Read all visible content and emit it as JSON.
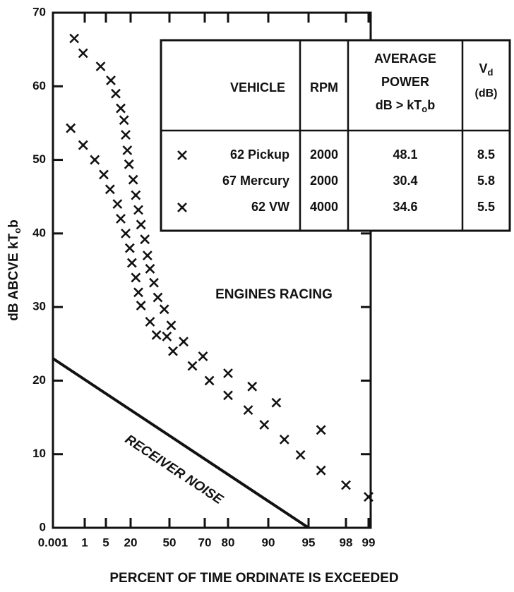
{
  "chart_data": {
    "type": "scatter",
    "xlabel": "PERCENT OF TIME ORDINATE IS EXCEEDED",
    "ylabel": {
      "text": "dB ABCVE kT",
      "sub": "o",
      "tail": "b"
    },
    "xscale": "probability",
    "xticks": [
      0.001,
      1,
      5,
      20,
      50,
      70,
      80,
      90,
      95,
      98,
      99
    ],
    "xlim": [
      0.001,
      99
    ],
    "ylim": [
      0,
      70
    ],
    "yticks": [
      0,
      10,
      20,
      30,
      40,
      50,
      60,
      70
    ],
    "color": "#111111",
    "annotation": "ENGINES RACING",
    "noise": {
      "label": "RECEIVER NOISE",
      "x": [
        0.001,
        95
      ],
      "values": [
        23,
        0
      ]
    },
    "table": {
      "header": {
        "vehicle": "VEHICLE",
        "rpm": "RPM",
        "power": [
          "AVERAGE",
          "POWER"
        ],
        "power_unit": {
          "text": "dB > kT",
          "sub": "o",
          "tail": "b"
        },
        "vd": {
          "text": "V",
          "sub": "d"
        },
        "vd_unit": "(dB)"
      },
      "rows": [
        {
          "vehicle": "62 Pickup",
          "rpm": 2000,
          "power": 48.1,
          "vd": 8.5,
          "points": {
            "x": [
              0.67,
              0.95,
              4,
              8,
              11,
              14,
              16,
              17,
              18,
              19,
              22,
              24,
              26,
              28,
              31,
              33,
              35,
              38,
              41,
              46,
              51,
              58,
              69,
              80,
              86,
              91,
              96
            ],
            "values": [
              66.5,
              64.5,
              62.7,
              60.8,
              59,
              57,
              55.4,
              53.4,
              51.3,
              49.4,
              47.3,
              45.2,
              43.2,
              41.2,
              39.2,
              37,
              35.2,
              33.3,
              31.3,
              29.7,
              27.5,
              25.3,
              23.3,
              21,
              19.2,
              17,
              13.3
            ]
          }
        },
        {
          "vehicle": "67 Mercury",
          "rpm": 2000,
          "power": 30.4,
          "vd": 5.8
        },
        {
          "vehicle": "62 VW",
          "rpm": 4000,
          "power": 34.6,
          "vd": 5.5,
          "points": {
            "x": [
              0.56,
              0.95,
              2.9,
              4.6,
              7.5,
              12,
              14,
              17,
              19.5,
              21,
              24,
              26,
              28,
              35,
              40,
              48,
              52,
              63,
              72,
              80,
              85,
              89,
              92,
              94,
              96,
              98,
              99
            ],
            "values": [
              54.3,
              52,
              50,
              48,
              46,
              44,
              42,
              40,
              38,
              36,
              34,
              32,
              30.2,
              28,
              26.2,
              26,
              24,
              22,
              20,
              18,
              16,
              14,
              12,
              9.9,
              7.8,
              5.8,
              4.2
            ]
          }
        }
      ]
    }
  }
}
